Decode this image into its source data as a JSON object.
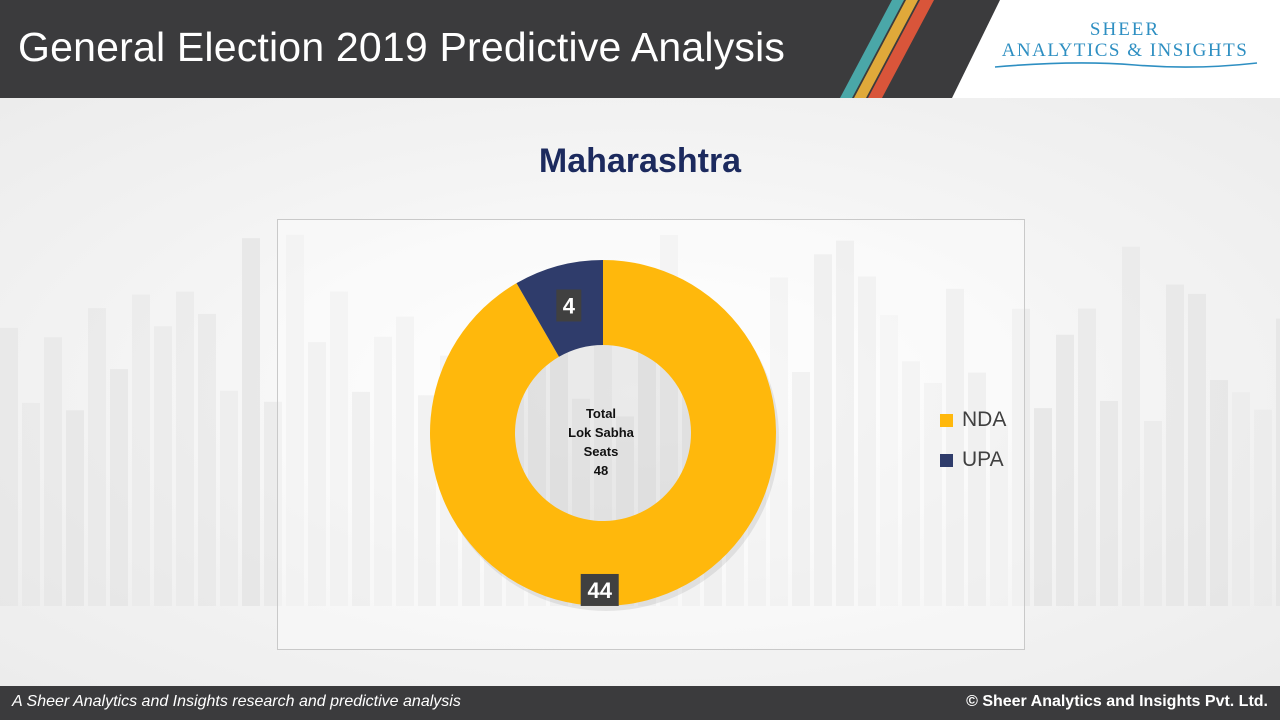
{
  "header": {
    "title": "General Election 2019 Predictive Analysis",
    "logo_top": "SHEER",
    "logo_bottom": "ANALYTICS & INSIGHTS"
  },
  "chart_data": {
    "type": "pie",
    "title": "Maharashtra",
    "categories": [
      "NDA",
      "UPA"
    ],
    "values": [
      44,
      4
    ],
    "colors": [
      "#ffb80c",
      "#2f3c6b"
    ],
    "center_label": [
      "Total",
      "Lok Sabha",
      "Seats",
      "48"
    ],
    "legend_position": "right"
  },
  "footer": {
    "left": "A Sheer Analytics and Insights research and predictive analysis",
    "right": "© Sheer Analytics and Insights Pvt. Ltd."
  },
  "theme": {
    "header_bg": "#3b3b3d",
    "stripe_colors": [
      "#4aa7a8",
      "#e0a93a",
      "#d9553a"
    ],
    "title_color": "#1c2a5e",
    "logo_color": "#2e8fc2"
  }
}
